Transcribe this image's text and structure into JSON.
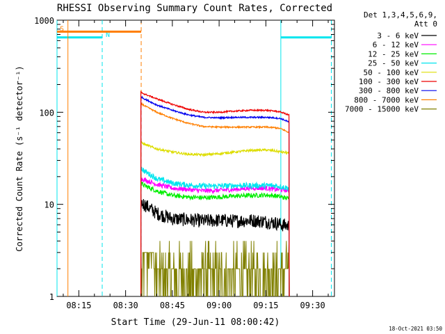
{
  "chart_data": {
    "type": "line",
    "title": "RHESSI Observing Summary Count Rates, Corrected",
    "xlabel": "Start Time (29-Jun-11 08:00:42)",
    "ylabel": "Corrected Count Rate (s⁻¹ detector⁻¹)",
    "y_scale": "log",
    "ylim": [
      1,
      1000
    ],
    "xlim_minutes": [
      8.0,
      97.0
    ],
    "x_ticks": [
      {
        "m": 15,
        "label": "08:15"
      },
      {
        "m": 30,
        "label": "08:30"
      },
      {
        "m": 45,
        "label": "08:45"
      },
      {
        "m": 60,
        "label": "09:00"
      },
      {
        "m": 75,
        "label": "09:15"
      },
      {
        "m": 90,
        "label": "09:30"
      }
    ],
    "y_ticks": [
      {
        "v": 1,
        "label": "1"
      },
      {
        "v": 10,
        "label": "10"
      },
      {
        "v": 100,
        "label": "100"
      },
      {
        "v": 1000,
        "label": "1000"
      }
    ],
    "legend_header": [
      "Det 1,3,4,5,6,9,",
      "Att 0"
    ],
    "legend_position": "right",
    "data_start_min": 34.9,
    "data_end_min": 82.5,
    "series": [
      {
        "name": "3 - 6 keV",
        "color": "#000000",
        "noise": 0.05,
        "values": [
          [
            34.9,
            10.5
          ],
          [
            36,
            10
          ],
          [
            40,
            8
          ],
          [
            45,
            7
          ],
          [
            50,
            6.8
          ],
          [
            55,
            6.6
          ],
          [
            60,
            6.7
          ],
          [
            65,
            6.6
          ],
          [
            70,
            6.7
          ],
          [
            75,
            6.5
          ],
          [
            78,
            6.3
          ],
          [
            80,
            6
          ],
          [
            82.5,
            5.8
          ]
        ]
      },
      {
        "name": "6 - 12 keV",
        "color": "#ff00ff",
        "noise": 0.025,
        "values": [
          [
            34.9,
            19
          ],
          [
            36,
            18.5
          ],
          [
            40,
            16.5
          ],
          [
            45,
            15
          ],
          [
            50,
            14.5
          ],
          [
            55,
            14
          ],
          [
            60,
            14.2
          ],
          [
            65,
            14.5
          ],
          [
            70,
            15
          ],
          [
            75,
            15
          ],
          [
            78,
            14.5
          ],
          [
            80,
            14.5
          ],
          [
            82.5,
            14
          ]
        ]
      },
      {
        "name": "12 - 25 keV",
        "color": "#00ee00",
        "noise": 0.025,
        "values": [
          [
            34.9,
            17
          ],
          [
            36,
            16
          ],
          [
            40,
            14
          ],
          [
            45,
            12.5
          ],
          [
            50,
            12
          ],
          [
            55,
            11.8
          ],
          [
            60,
            12
          ],
          [
            65,
            12.3
          ],
          [
            70,
            12.5
          ],
          [
            75,
            12.6
          ],
          [
            78,
            12.4
          ],
          [
            80,
            12
          ],
          [
            82.5,
            11.5
          ]
        ]
      },
      {
        "name": "25 - 50 keV",
        "color": "#00e5ee",
        "noise": 0.03,
        "values": [
          [
            34.9,
            25
          ],
          [
            36,
            23
          ],
          [
            40,
            19
          ],
          [
            45,
            17
          ],
          [
            50,
            16.2
          ],
          [
            55,
            15.8
          ],
          [
            60,
            15.8
          ],
          [
            65,
            16
          ],
          [
            70,
            16
          ],
          [
            75,
            16
          ],
          [
            78,
            16
          ],
          [
            80,
            15.5
          ],
          [
            82.5,
            15
          ]
        ]
      },
      {
        "name": "50 - 100 keV",
        "color": "#dddd00",
        "noise": 0.012,
        "values": [
          [
            34.9,
            47
          ],
          [
            36,
            45
          ],
          [
            40,
            40
          ],
          [
            45,
            37
          ],
          [
            50,
            35
          ],
          [
            55,
            34.5
          ],
          [
            60,
            35.5
          ],
          [
            65,
            37
          ],
          [
            70,
            38.5
          ],
          [
            75,
            39
          ],
          [
            78,
            38
          ],
          [
            80,
            37
          ],
          [
            82.5,
            36
          ]
        ]
      },
      {
        "name": "100 - 300 keV",
        "color": "#ee0000",
        "noise": 0.008,
        "values": [
          [
            34.9,
            165
          ],
          [
            36,
            158
          ],
          [
            40,
            140
          ],
          [
            45,
            122
          ],
          [
            50,
            108
          ],
          [
            55,
            100
          ],
          [
            60,
            100
          ],
          [
            65,
            103
          ],
          [
            70,
            105
          ],
          [
            75,
            105
          ],
          [
            78,
            103
          ],
          [
            80,
            100
          ],
          [
            82.5,
            93
          ]
        ]
      },
      {
        "name": "300 - 800 keV",
        "color": "#0000ee",
        "noise": 0.008,
        "values": [
          [
            34.9,
            148
          ],
          [
            36,
            140
          ],
          [
            40,
            120
          ],
          [
            45,
            105
          ],
          [
            50,
            94
          ],
          [
            55,
            88
          ],
          [
            60,
            87
          ],
          [
            65,
            88
          ],
          [
            70,
            88
          ],
          [
            75,
            88
          ],
          [
            78,
            87
          ],
          [
            80,
            85
          ],
          [
            82.5,
            78
          ]
        ]
      },
      {
        "name": "800 - 7000 keV",
        "color": "#ff7f00",
        "noise": 0.008,
        "values": [
          [
            34.9,
            125
          ],
          [
            36,
            118
          ],
          [
            40,
            100
          ],
          [
            45,
            86
          ],
          [
            50,
            76
          ],
          [
            55,
            70
          ],
          [
            60,
            69
          ],
          [
            65,
            69
          ],
          [
            70,
            69
          ],
          [
            75,
            69
          ],
          [
            78,
            68
          ],
          [
            80,
            66
          ],
          [
            82.5,
            60
          ]
        ]
      },
      {
        "name": "7000 - 15000 keV",
        "color": "#808000",
        "noise": 0,
        "quantized": true,
        "values": [
          [
            35,
            3
          ],
          [
            37,
            4
          ],
          [
            40,
            2
          ],
          [
            45,
            1.5
          ],
          [
            50,
            2
          ],
          [
            55,
            2
          ],
          [
            60,
            2
          ],
          [
            65,
            2
          ],
          [
            70,
            2
          ],
          [
            75,
            2
          ],
          [
            78,
            3
          ],
          [
            80,
            2
          ],
          [
            82.5,
            2
          ]
        ]
      }
    ],
    "attenuator_state": {
      "color": "#ff7f00",
      "label": "S",
      "value": 750,
      "segments": [
        [
          8.0,
          11.5
        ],
        [
          11.5,
          35.0
        ]
      ],
      "dashed_boundary_min": [
        35.0
      ]
    },
    "night_state": {
      "color": "#00e5ee",
      "label": "N",
      "value": 650,
      "segments": [
        [
          8.0,
          22.5
        ],
        [
          79.8,
          96.0
        ]
      ],
      "boundaries_solid_min": [
        8.0,
        79.8
      ],
      "boundaries_dashed_min": [
        22.5,
        96.0
      ]
    }
  },
  "footer": {
    "timestamp": "18-Oct-2021 03:50"
  }
}
